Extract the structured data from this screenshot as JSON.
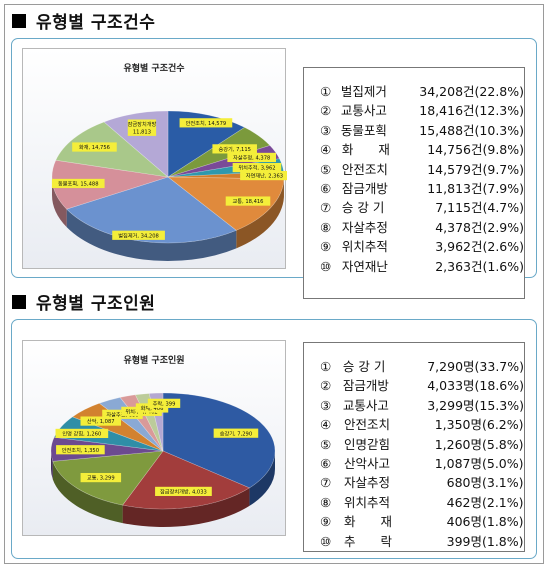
{
  "sections": [
    {
      "heading": "유형별 구조건수",
      "legend": [
        {
          "num": "①",
          "name": "벌집제거",
          "value": "34,208건",
          "pct": "(22.8%)"
        },
        {
          "num": "②",
          "name": "교통사고",
          "value": "18,416건",
          "pct": "(12.3%)"
        },
        {
          "num": "③",
          "name": "동물포획",
          "value": "15,488건",
          "pct": "(10.3%)"
        },
        {
          "num": "④",
          "name": "화　　재",
          "value": "14,756건",
          "pct": "(9.8%)"
        },
        {
          "num": "⑤",
          "name": "안전조치",
          "value": "14,579건",
          "pct": "(9.7%)"
        },
        {
          "num": "⑥",
          "name": "잠금개방",
          "value": "11,813건",
          "pct": "(7.9%)"
        },
        {
          "num": "⑦",
          "name": "승 강 기",
          "value": "7,115건",
          "pct": "(4.7%)"
        },
        {
          "num": "⑧",
          "name": "자살추정",
          "value": "4,378건",
          "pct": "(2.9%)"
        },
        {
          "num": "⑨",
          "name": "위치추적",
          "value": "3,962건",
          "pct": "(2.6%)"
        },
        {
          "num": "⑩",
          "name": "자연재난",
          "value": "2,363건",
          "pct": "(1.6%)"
        }
      ]
    },
    {
      "heading": "유형별 구조인원",
      "legend": [
        {
          "num": "①",
          "name": "승 강 기",
          "value": "7,290명",
          "pct": "(33.7%)"
        },
        {
          "num": "②",
          "name": "잠금개방",
          "value": "4,033명",
          "pct": "(18.6%)"
        },
        {
          "num": "③",
          "name": "교통사고",
          "value": "3,299명",
          "pct": "(15.3%)"
        },
        {
          "num": "④",
          "name": "안전조치",
          "value": "1,350명",
          "pct": "(6.2%)"
        },
        {
          "num": "⑤",
          "name": "인명갇힘",
          "value": "1,260명",
          "pct": "(5.8%)"
        },
        {
          "num": "⑥",
          "name": "산악사고",
          "value": "1,087명",
          "pct": "(5.0%)"
        },
        {
          "num": "⑦",
          "name": "자살추정",
          "value": "680명",
          "pct": "(3.1%)"
        },
        {
          "num": "⑧",
          "name": "위치추적",
          "value": "462명",
          "pct": "(2.1%)"
        },
        {
          "num": "⑨",
          "name": "화　　재",
          "value": "406명",
          "pct": "(1.8%)"
        },
        {
          "num": "⑩",
          "name": "추　　락",
          "value": "399명",
          "pct": "(1.8%)"
        }
      ]
    }
  ],
  "chart_data": [
    {
      "type": "pie",
      "title": "유형별 구조건수",
      "three_d": true,
      "categories": [
        "안전조치",
        "승강기",
        "자살추정",
        "위치추적",
        "자연재난",
        "교통",
        "벌집제거",
        "동물포획",
        "화재",
        "잠금장치개방"
      ],
      "values": [
        14579,
        7115,
        4378,
        3962,
        2363,
        18416,
        34208,
        15488,
        14756,
        11813
      ],
      "labels": [
        "안전조치, 14,579",
        "승강기, 7,115",
        "자살추정, 4,378",
        "위치추적, 3,962",
        "자연재난, 2,363",
        "교통, 18,416",
        "벌집제거, 34,208",
        "동물포획, 15,488",
        "화재, 14,756",
        "잠금장치개방, 11,813"
      ],
      "colors": [
        "#2a5ca6",
        "#7b9a3c",
        "#7a4a98",
        "#2f98ad",
        "#d27d2c",
        "#e08a3c",
        "#6b92cf",
        "#d5909a",
        "#a9c88a",
        "#b4a8d6"
      ]
    },
    {
      "type": "pie",
      "title": "유형별 구조인원",
      "three_d": true,
      "categories": [
        "승강기",
        "잠금장치개방",
        "교통",
        "안전조치",
        "인명 갇힘",
        "산악",
        "자살추정",
        "위치추적",
        "화재",
        "추락"
      ],
      "values": [
        7290,
        4033,
        3299,
        1350,
        1260,
        1087,
        680,
        462,
        406,
        399
      ],
      "labels": [
        "승강기, 7,290",
        "잠금장치개방, 4,033",
        "교통, 3,299",
        "안전조치, 1,350",
        "인명 갇힘, 1,260",
        "산악, 1,087",
        "자살추정, 680",
        "위치추적, 462",
        "화재, 406",
        "추락, 399"
      ],
      "colors": [
        "#2e5aa3",
        "#a23d3c",
        "#7f9a3e",
        "#6c4a90",
        "#2f8ea7",
        "#d2822f",
        "#8aa9d4",
        "#d99a99",
        "#bccc9a",
        "#b4a8d2"
      ]
    }
  ]
}
